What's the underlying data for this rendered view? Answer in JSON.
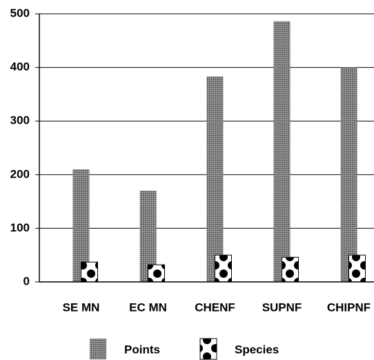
{
  "chart_data": {
    "type": "bar",
    "categories": [
      "SE MN",
      "EC MN",
      "CHENF",
      "SUPNF",
      "CHIPNF"
    ],
    "series": [
      {
        "name": "Points",
        "color": "#6a6a6a",
        "values": [
          210,
          170,
          383,
          486,
          400
        ]
      },
      {
        "name": "Species",
        "color": "#ffffff",
        "values": [
          37,
          32,
          50,
          46,
          50
        ]
      }
    ],
    "ylim": [
      0,
      500
    ],
    "yticks": [
      0,
      100,
      200,
      300,
      400,
      500
    ],
    "grid": true
  }
}
